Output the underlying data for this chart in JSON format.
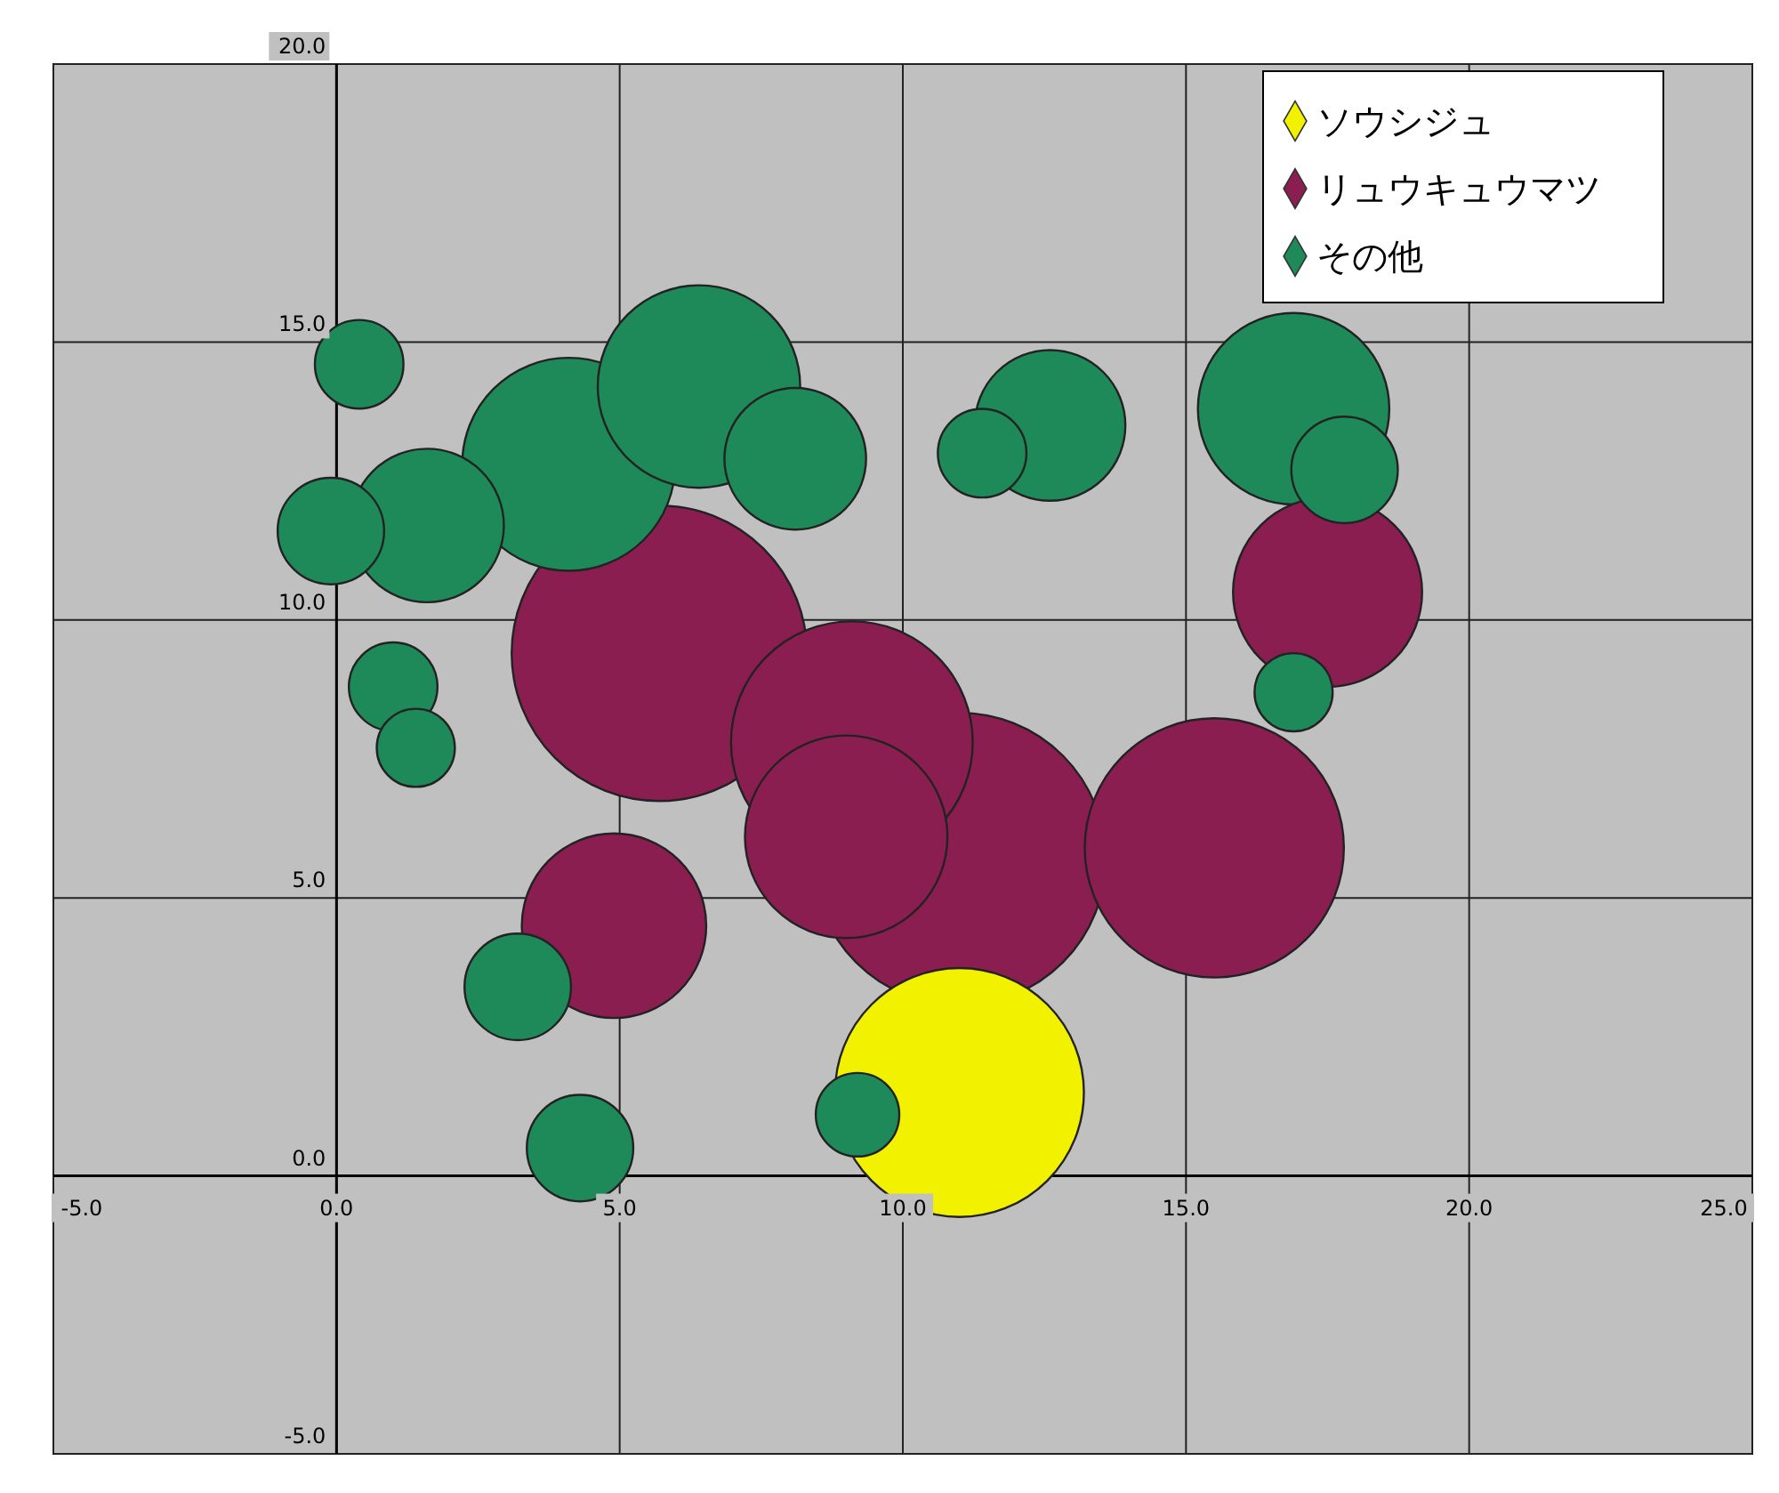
{
  "chart_data": {
    "type": "bubble",
    "xlim": [
      -5,
      25
    ],
    "ylim": [
      -5,
      20
    ],
    "xticks": [
      {
        "value": -5,
        "label": "-5.0"
      },
      {
        "value": 0,
        "label": "0.0"
      },
      {
        "value": 5,
        "label": "5.0"
      },
      {
        "value": 10,
        "label": "10.0"
      },
      {
        "value": 15,
        "label": "15.0"
      },
      {
        "value": 20,
        "label": "20.0"
      },
      {
        "value": 25,
        "label": "25.0"
      }
    ],
    "yticks": [
      {
        "value": -5,
        "label": "-5.0"
      },
      {
        "value": 0,
        "label": "0.0"
      },
      {
        "value": 5,
        "label": "5.0"
      },
      {
        "value": 10,
        "label": "10.0"
      },
      {
        "value": 15,
        "label": "15.0"
      },
      {
        "value": 20,
        "label": "20.0"
      }
    ],
    "grid": true,
    "legend": "top right",
    "series": [
      {
        "name": "ソウシジュ",
        "color": "#f2f200",
        "x": [
          11.0
        ],
        "values": [
          1.5
        ],
        "sizes": [
          0.71
        ]
      },
      {
        "name": "リュウキュウマツ",
        "color": "#8b1e50",
        "x": [
          5.7,
          9.1,
          9.0,
          11.0,
          15.5,
          17.5,
          4.9
        ],
        "values": [
          9.4,
          7.8,
          6.1,
          5.7,
          5.9,
          10.5,
          4.5
        ],
        "sizes": [
          1,
          0.67,
          0.47,
          0.98,
          0.77,
          0.41,
          0.39
        ]
      },
      {
        "name": "その他",
        "color": "#1e8a5a",
        "x": [
          0.4,
          -0.1,
          1.6,
          4.1,
          6.4,
          8.1,
          11.4,
          12.6,
          16.9,
          17.8,
          16.9,
          1.0,
          1.4,
          3.2,
          4.3,
          9.2
        ],
        "values": [
          14.6,
          11.6,
          11.7,
          12.8,
          14.2,
          12.9,
          13.0,
          13.5,
          13.8,
          12.7,
          8.7,
          8.8,
          7.7,
          3.4,
          0.5,
          1.1
        ],
        "sizes": [
          0.09,
          0.13,
          0.27,
          0.52,
          0.47,
          0.23,
          0.09,
          0.26,
          0.42,
          0.13,
          0.07,
          0.09,
          0.07,
          0.13,
          0.13,
          0.08
        ]
      }
    ]
  }
}
